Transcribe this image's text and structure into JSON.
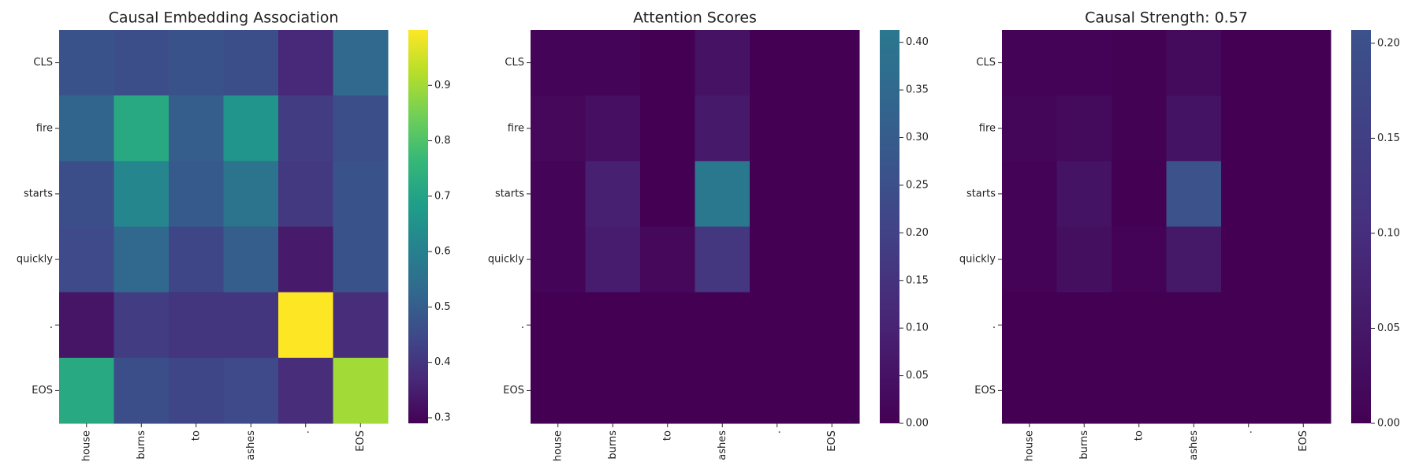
{
  "chart_data": [
    {
      "type": "heatmap",
      "title": "Causal Embedding Association",
      "x": [
        "house",
        "burns",
        "to",
        "ashes",
        ".",
        "EOS"
      ],
      "y": [
        "CLS",
        "fire",
        "starts",
        "quickly",
        ".",
        "EOS"
      ],
      "values": [
        [
          0.47,
          0.46,
          0.47,
          0.46,
          0.37,
          0.53
        ],
        [
          0.52,
          0.72,
          0.5,
          0.66,
          0.42,
          0.46
        ],
        [
          0.46,
          0.62,
          0.49,
          0.56,
          0.41,
          0.47
        ],
        [
          0.45,
          0.53,
          0.44,
          0.5,
          0.34,
          0.47
        ],
        [
          0.33,
          0.42,
          0.4,
          0.4,
          1.0,
          0.38
        ],
        [
          0.72,
          0.46,
          0.44,
          0.45,
          0.38,
          0.9
        ]
      ],
      "clim": [
        0.29,
        1.0
      ],
      "cticks": [
        0.3,
        0.4,
        0.5,
        0.6,
        0.7,
        0.8,
        0.9
      ],
      "colorscale": [
        "#440154",
        "#482878",
        "#3e4989",
        "#31688e",
        "#26828e",
        "#1f9e89",
        "#35b779",
        "#6ece58",
        "#b5de2b",
        "#fde725"
      ]
    },
    {
      "type": "heatmap",
      "title": "Attention Scores",
      "x": [
        "house",
        "burns",
        "to",
        "ashes",
        ".",
        "EOS"
      ],
      "y": [
        "CLS",
        "fire",
        "starts",
        "quickly",
        ".",
        "EOS"
      ],
      "values": [
        [
          0.01,
          0.01,
          0.0,
          0.05,
          0.0,
          0.0
        ],
        [
          0.02,
          0.04,
          0.0,
          0.07,
          0.0,
          0.0
        ],
        [
          0.01,
          0.09,
          0.0,
          0.413,
          0.0,
          0.0
        ],
        [
          0.01,
          0.08,
          0.02,
          0.16,
          0.0,
          0.0
        ],
        [
          0.0,
          0.0,
          0.0,
          0.0,
          0.0,
          0.0
        ],
        [
          0.0,
          0.0,
          0.0,
          0.0,
          0.0,
          0.0
        ]
      ],
      "clim": [
        0,
        0.413
      ],
      "cticks": [
        {
          "value": 0,
          "label": "0.00"
        },
        0.05,
        {
          "value": 0.1,
          "label": "0.10"
        },
        0.15,
        {
          "value": 0.2,
          "label": "0.20"
        },
        0.25,
        {
          "value": 0.3,
          "label": "0.30"
        },
        0.35,
        {
          "value": 0.4,
          "label": "0.40"
        }
      ],
      "colorscale": [
        "#440154",
        "#482475",
        "#414487",
        "#355f8d",
        "#2a788e"
      ]
    },
    {
      "type": "heatmap",
      "title": "Causal Strength: 0.57",
      "x": [
        "house",
        "burns",
        "to",
        "ashes",
        ".",
        "EOS"
      ],
      "y": [
        "CLS",
        "fire",
        "starts",
        "quickly",
        ".",
        "EOS"
      ],
      "values": [
        [
          0.005,
          0.005,
          0.002,
          0.02,
          0.0,
          0.0
        ],
        [
          0.01,
          0.02,
          0.002,
          0.04,
          0.0,
          0.0
        ],
        [
          0.004,
          0.04,
          0.0,
          0.207,
          0.0,
          0.0
        ],
        [
          0.004,
          0.03,
          0.004,
          0.05,
          0.0,
          0.0
        ],
        [
          0.0,
          0.0,
          0.0,
          0.0,
          0.0,
          0.0
        ],
        [
          0.0,
          0.0,
          0.0,
          0.0,
          0.0,
          0.0
        ]
      ],
      "clim": [
        0,
        0.207
      ],
      "cticks": [
        {
          "value": 0,
          "label": "0.00"
        },
        0.05,
        {
          "value": 0.1,
          "label": "0.10"
        },
        0.15,
        {
          "value": 0.2,
          "label": "0.20"
        }
      ],
      "colorscale": [
        "#440154",
        "#46307e",
        "#3b528b"
      ]
    }
  ]
}
